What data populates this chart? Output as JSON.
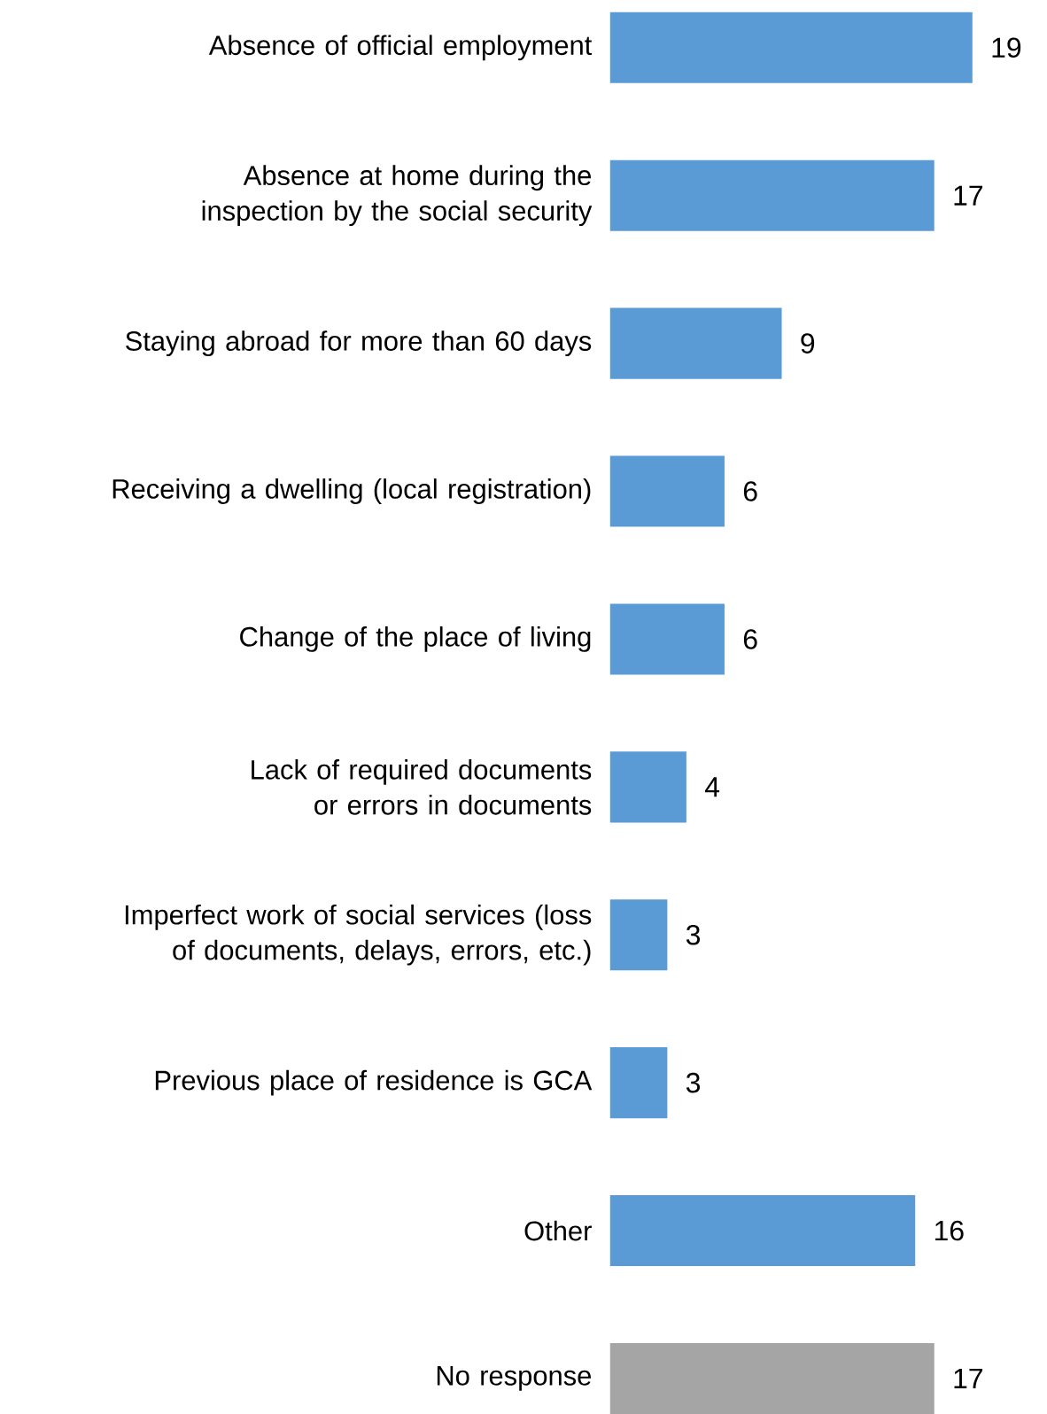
{
  "chart_data": {
    "type": "bar",
    "orientation": "horizontal",
    "categories": [
      "Absence of official employment",
      "Absence at home during the inspection by the social security",
      "Staying abroad for more than 60 days",
      "Receiving a dwelling (local registration)",
      "Change of the place of living",
      "Lack of required documents or errors in documents",
      "Imperfect work of social services (loss of documents, delays, errors, etc.)",
      "Previous place of residence is GCA",
      "Other",
      "No response"
    ],
    "values": [
      19,
      17,
      9,
      6,
      6,
      4,
      3,
      3,
      16,
      17
    ],
    "colors": [
      "#5b9bd5",
      "#5b9bd5",
      "#5b9bd5",
      "#5b9bd5",
      "#5b9bd5",
      "#5b9bd5",
      "#5b9bd5",
      "#5b9bd5",
      "#5b9bd5",
      "#a5a5a5"
    ],
    "data_labels": true,
    "tick_labels": "y"
  }
}
